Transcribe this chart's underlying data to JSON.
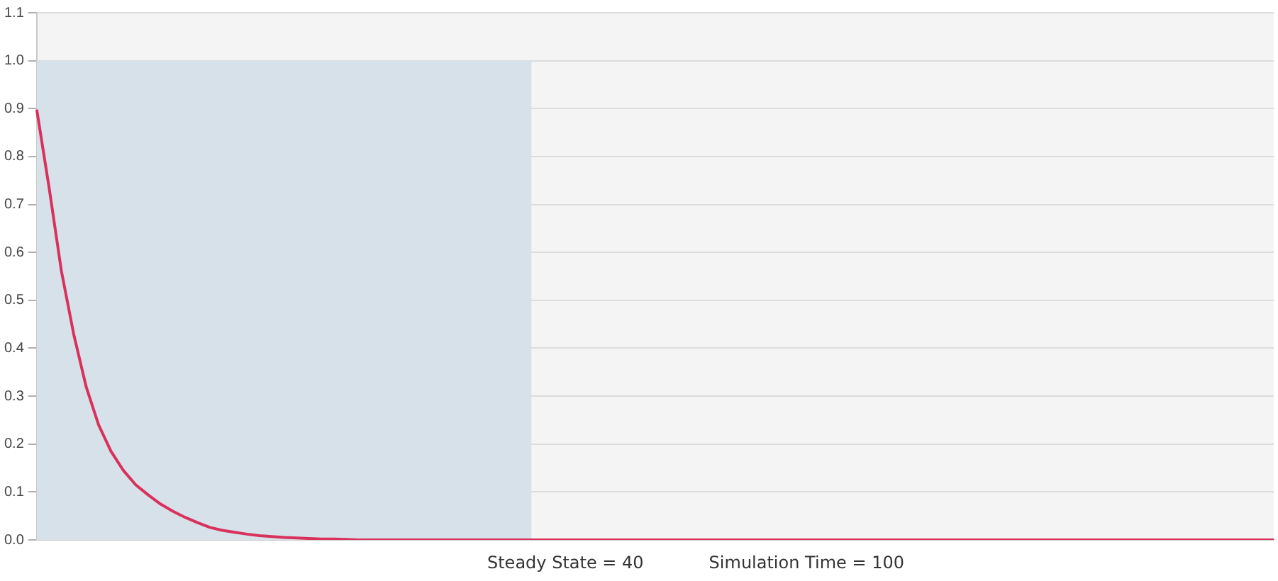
{
  "chart_data": {
    "type": "line",
    "categories": [
      null,
      null,
      null,
      null,
      null,
      null,
      null,
      null,
      null,
      null,
      null,
      null,
      null,
      null,
      null,
      null,
      null,
      null,
      null,
      null,
      null,
      null,
      null,
      null,
      null,
      null,
      null,
      null,
      null,
      null,
      null,
      null,
      null,
      null,
      null,
      null,
      null,
      null,
      null,
      null,
      null,
      null,
      null,
      null,
      null,
      null,
      null,
      null,
      null,
      null,
      null,
      null,
      null,
      null,
      null,
      null,
      null,
      null,
      null,
      null,
      null,
      null,
      null,
      null,
      null,
      null,
      null,
      null,
      null,
      null,
      null,
      null,
      null,
      null,
      null,
      null,
      null,
      null,
      null,
      null,
      null,
      null,
      null,
      null,
      null,
      null,
      null,
      null,
      null,
      null,
      null,
      null,
      null,
      null,
      null,
      null,
      null,
      null,
      null,
      null,
      null
    ],
    "series": [
      {
        "type": "area",
        "color": "#d6e1ea",
        "values": [
          1,
          1,
          1,
          1,
          1,
          1,
          1,
          1,
          1,
          1,
          1,
          1,
          1,
          1,
          1,
          1,
          1,
          1,
          1,
          1,
          1,
          1,
          1,
          1,
          1,
          1,
          1,
          1,
          1,
          1,
          1,
          1,
          1,
          1,
          1,
          1,
          1,
          1,
          1,
          1,
          1,
          null,
          null,
          null,
          null,
          null,
          null,
          null,
          null,
          null,
          null,
          null,
          null,
          null,
          null,
          null,
          null,
          null,
          null,
          null,
          null,
          null,
          null,
          null,
          null,
          null,
          null,
          null,
          null,
          null,
          null,
          null,
          null,
          null,
          null,
          null,
          null,
          null,
          null,
          null,
          null,
          null,
          null,
          null,
          null,
          null,
          null,
          null,
          null,
          null,
          null,
          null,
          null,
          null,
          null,
          null,
          null,
          null,
          null,
          null,
          null
        ]
      },
      {
        "color": "#d9305c",
        "values": [
          0.898,
          0.735,
          0.56,
          0.428,
          0.319,
          0.24,
          0.185,
          0.145,
          0.115,
          0.094,
          0.075,
          0.06,
          0.047,
          0.036,
          0.026,
          0.02,
          0.016,
          0.012,
          0.009,
          0.007,
          0.005,
          0.004,
          0.003,
          0.002,
          0.002,
          0.001,
          0,
          0,
          0,
          0,
          0,
          0,
          0,
          0,
          0,
          0,
          0,
          0,
          0,
          0,
          0,
          0,
          0,
          0,
          0,
          0,
          0,
          0,
          0,
          0,
          0,
          0,
          0,
          0,
          0,
          0,
          0,
          0,
          0,
          0,
          0,
          0,
          0,
          0,
          0,
          0,
          0,
          0,
          0,
          0,
          0,
          0,
          0,
          0,
          0,
          0,
          0,
          0,
          0,
          0,
          0,
          0,
          0,
          0,
          0,
          0,
          0,
          0,
          0,
          0,
          0,
          0,
          0,
          0,
          0,
          0,
          0,
          0,
          0,
          0,
          0
        ]
      }
    ],
    "ylim": [
      0,
      1.1
    ],
    "yticks": [
      {
        "value": 0,
        "label": "0.0"
      },
      0.1,
      0.2,
      0.3,
      0.4,
      0.5,
      0.6,
      0.7,
      0.8,
      0.9,
      {
        "value": 1,
        "label": "1.0"
      },
      1.1
    ],
    "tick_labels": "y",
    "grid": "y",
    "legend": false,
    "marker": "none",
    "line_style": "solid",
    "annotations": [
      "Steady State = 40",
      "Simulation Time = 100"
    ]
  }
}
